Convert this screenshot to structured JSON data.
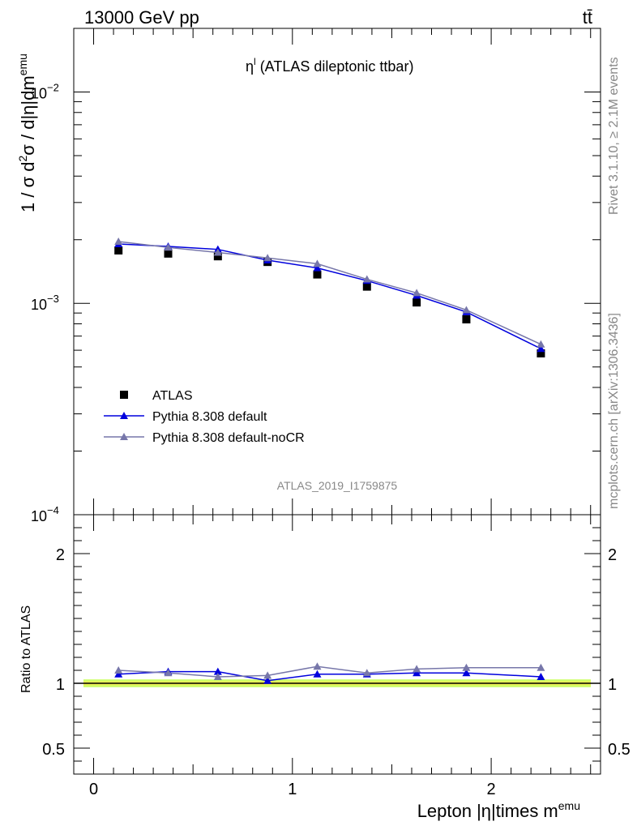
{
  "header": {
    "energy_label": "13000 GeV pp",
    "process_label": "tt̄"
  },
  "side_labels": {
    "rivet": "Rivet 3.1.10, ≥ 2.1M events",
    "url": "mcplots.cern.ch [arXiv:1306.3436]"
  },
  "watermark": "ATLAS_2019_I1759875",
  "chart_data": [
    {
      "type": "line",
      "title": "η^l (ATLAS dileptonic ttbar)",
      "title_main": "η",
      "title_sup": "l",
      "title_rest": " (ATLAS dileptonic ttbar)",
      "ylabel": "1 / σ  d²σ / d|η|dm^emu",
      "ylabel_main": "1 / σ  d",
      "ylabel_sup1": "2",
      "ylabel_mid": "σ / d|η|dm",
      "ylabel_sup2": "emu",
      "yscale": "log",
      "ylim": [
        0.0001,
        0.02
      ],
      "xlim": [
        -0.1,
        2.55
      ],
      "y_tick_labels": [
        {
          "value": 0.01,
          "base": "10",
          "exp": "−2"
        },
        {
          "value": 0.001,
          "base": "10",
          "exp": "−3"
        },
        {
          "value": 0.0001,
          "base": "10",
          "exp": "−4"
        }
      ],
      "x": [
        0.125,
        0.375,
        0.625,
        0.875,
        1.125,
        1.375,
        1.625,
        1.875,
        2.25
      ],
      "series": [
        {
          "name": "ATLAS",
          "marker": "square",
          "color": "#000000",
          "values": [
            0.00178,
            0.00172,
            0.00167,
            0.00157,
            0.00137,
            0.0012,
            0.00101,
            0.00084,
            0.00058
          ]
        },
        {
          "name": "Pythia 8.308 default",
          "marker": "triangle",
          "color": "#0000dd",
          "values": [
            0.00191,
            0.00186,
            0.0018,
            0.0016,
            0.00147,
            0.00128,
            0.00109,
            0.00091,
            0.00061
          ]
        },
        {
          "name": "Pythia 8.308 default-noCR",
          "marker": "triangle",
          "color": "#7777aa",
          "values": [
            0.00196,
            0.00184,
            0.00174,
            0.00164,
            0.00154,
            0.0013,
            0.00112,
            0.00093,
            0.00064
          ]
        }
      ],
      "legend": "left"
    },
    {
      "type": "line",
      "ylabel": "Ratio to ATLAS",
      "ylim": [
        0.3,
        2.3
      ],
      "xlim": [
        -0.1,
        2.55
      ],
      "y_ticks": [
        0.5,
        1,
        2
      ],
      "y_tick_labels": [
        "0.5",
        "1",
        "2"
      ],
      "x_ticks": [
        0,
        1,
        2
      ],
      "x_tick_labels": [
        "0",
        "1",
        "2"
      ],
      "xlabel": "Lepton |η|times m^emu",
      "xlabel_main": "Lepton |η|times m",
      "xlabel_sup": "emu",
      "band": {
        "low": 0.97,
        "high": 1.03,
        "color": "#ccff66"
      },
      "x": [
        0.125,
        0.375,
        0.625,
        0.875,
        1.125,
        1.375,
        1.625,
        1.875,
        2.25
      ],
      "series": [
        {
          "name": "Pythia 8.308 default",
          "color": "#0000dd",
          "values": [
            1.07,
            1.09,
            1.09,
            1.02,
            1.07,
            1.07,
            1.08,
            1.08,
            1.05
          ]
        },
        {
          "name": "Pythia 8.308 default-noCR",
          "color": "#7777aa",
          "values": [
            1.1,
            1.08,
            1.05,
            1.06,
            1.13,
            1.08,
            1.11,
            1.12,
            1.12
          ]
        }
      ]
    }
  ]
}
